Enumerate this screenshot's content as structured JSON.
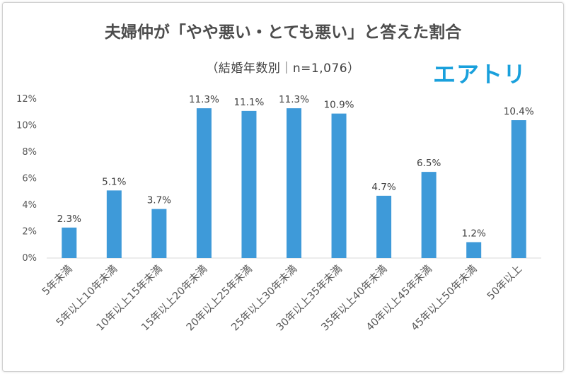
{
  "title": "夫婦仲が「やや悪い・とても悪い」と答えた割合",
  "subtitle": "（結婚年数別｜n=1,076）",
  "logo": "エアトリ",
  "chart_data": {
    "type": "bar",
    "categories": [
      "5年未満",
      "5年以上10年未満",
      "10年以上15年未満",
      "15年以上20年未満",
      "20年以上25年未満",
      "25年以上30年未満",
      "30年以上35年未満",
      "35年以上40年未満",
      "40年以上45年未満",
      "45年以上50年未満",
      "50年以上"
    ],
    "values": [
      2.3,
      5.1,
      3.7,
      11.3,
      11.1,
      11.3,
      10.9,
      4.7,
      6.5,
      1.2,
      10.4
    ],
    "data_labels": [
      "2.3%",
      "5.1%",
      "3.7%",
      "11.3%",
      "11.1%",
      "11.3%",
      "10.9%",
      "4.7%",
      "6.5%",
      "1.2%",
      "10.4%"
    ],
    "yticks": [
      "0%",
      "2%",
      "4%",
      "6%",
      "8%",
      "10%",
      "12%"
    ],
    "ylim": [
      0,
      12
    ],
    "unit": "%",
    "grid": false,
    "bar_color": "#3e9ad9",
    "axis_color": "#d9d9d9"
  }
}
